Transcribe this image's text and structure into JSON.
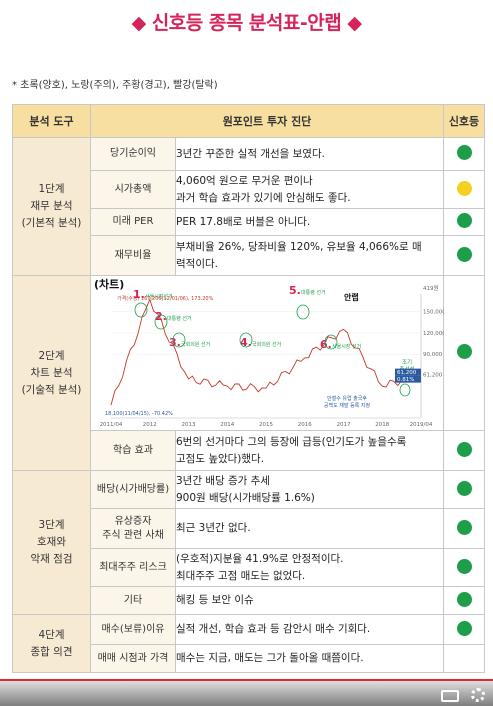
{
  "title": "◆ 신호등 종목 분석표-안랩 ◆",
  "legend_note": "* 초록(양호), 노랑(주의), 주황(경고), 빨강(탈락)",
  "header": {
    "tool": "분석 도구",
    "diagnosis": "원포인트 투자 진단",
    "signal": "신호등"
  },
  "colors": {
    "green": "#1e9e4a",
    "yellow": "#f5d020",
    "header_bg": "#f6dfa0",
    "title": "#d4245a"
  },
  "stages": {
    "s1": "1단계\n재무 분석\n(기본적 분석)",
    "s2": "2단계\n차트 분석\n(기술적 분석)",
    "s3": "3단계\n호재와\n악재 점검",
    "s4": "4단계\n종합 의견"
  },
  "rows": [
    {
      "tool": "당기순이익",
      "desc": "3년간 꾸준한 실적 개선을 보였다.",
      "signal": "green"
    },
    {
      "tool": "시가총액",
      "desc": "4,060억 원으로 무거운 편이나\n과거 학습 효과가 있기에 안심해도 좋다.",
      "signal": "yellow"
    },
    {
      "tool": "미래 PER",
      "desc": "PER 17.8배로 버블은 아니다.",
      "signal": "green"
    },
    {
      "tool": "재무비율",
      "desc": "부채비율 26%, 당좌비율 120%, 유보율 4,066%로 매\n력적이다.",
      "signal": "green"
    },
    {
      "tool": "학습 효과",
      "desc": "6번의 선거마다 그의 등장에 급등(인기도가 높을수록\n고점도 높았다)했다.",
      "signal": "green"
    },
    {
      "tool": "배당(시가배당률)",
      "desc": "3년간 배당 증가 추세\n900원 배당(시가배당률 1.6%)",
      "signal": "green"
    },
    {
      "tool": "유상증자\n주식 관련 사채",
      "desc": "최근 3년간 없다.",
      "signal": "green"
    },
    {
      "tool": "최대주주 리스크",
      "desc": "(우호적)지분율 41.9%로 안정적이다.\n최대주주 고점 매도는 없었다.",
      "signal": "green"
    },
    {
      "tool": "기타",
      "desc": "해킹 등 보안 이슈",
      "signal": "green"
    },
    {
      "tool": "매수(보류)이유",
      "desc": "실적 개선, 학습 효과 등 감안시 매수 기회다.",
      "signal": "green"
    },
    {
      "tool": "매매 시점과 가격",
      "desc": "매수는 지금, 매도는 그가 돌아올 때쯤이다.",
      "signal": ""
    }
  ],
  "chart": {
    "label": "(차트)",
    "stock_name": "안랩",
    "y_ticks": [
      "419원",
      "150,000",
      "120,000",
      "90,000",
      "61,200"
    ],
    "x_ticks": [
      "2011/04",
      "2012",
      "2013",
      "2014",
      "2015",
      "2016",
      "2017",
      "2018",
      "2019/04"
    ],
    "high_label": "가격(수정)",
    "high_value": "167,200(12/01/06), 173.20%",
    "low_value": "18,100(11/04/15), -70.42%",
    "price_badge": "61,200",
    "pct_badge": "0.81%",
    "events": [
      {
        "num": "1.",
        "label": "서울시장선거"
      },
      {
        "num": "2.",
        "label": "대통령 선거"
      },
      {
        "num": "3.",
        "label": "국회의원 선거"
      },
      {
        "num": "4.",
        "label": "국회의원 선거"
      },
      {
        "num": "5.",
        "label": "대통령 선거"
      },
      {
        "num": "6.",
        "label": "서울시장 선거"
      }
    ],
    "right_note": "조기\n총선설",
    "bottom_note": "안철수 유럽 출국후\n공백도 재발 등록 지정"
  },
  "chart_data": {
    "type": "line",
    "x": [
      "2011/04",
      "2012",
      "2013",
      "2014",
      "2015",
      "2016",
      "2017",
      "2018",
      "2019/04"
    ],
    "series": [
      {
        "values": [
          18100,
          167200,
          55000,
          45000,
          42000,
          85000,
          125000,
          45000,
          61200
        ]
      }
    ],
    "ylim": [
      0,
      175000
    ]
  }
}
